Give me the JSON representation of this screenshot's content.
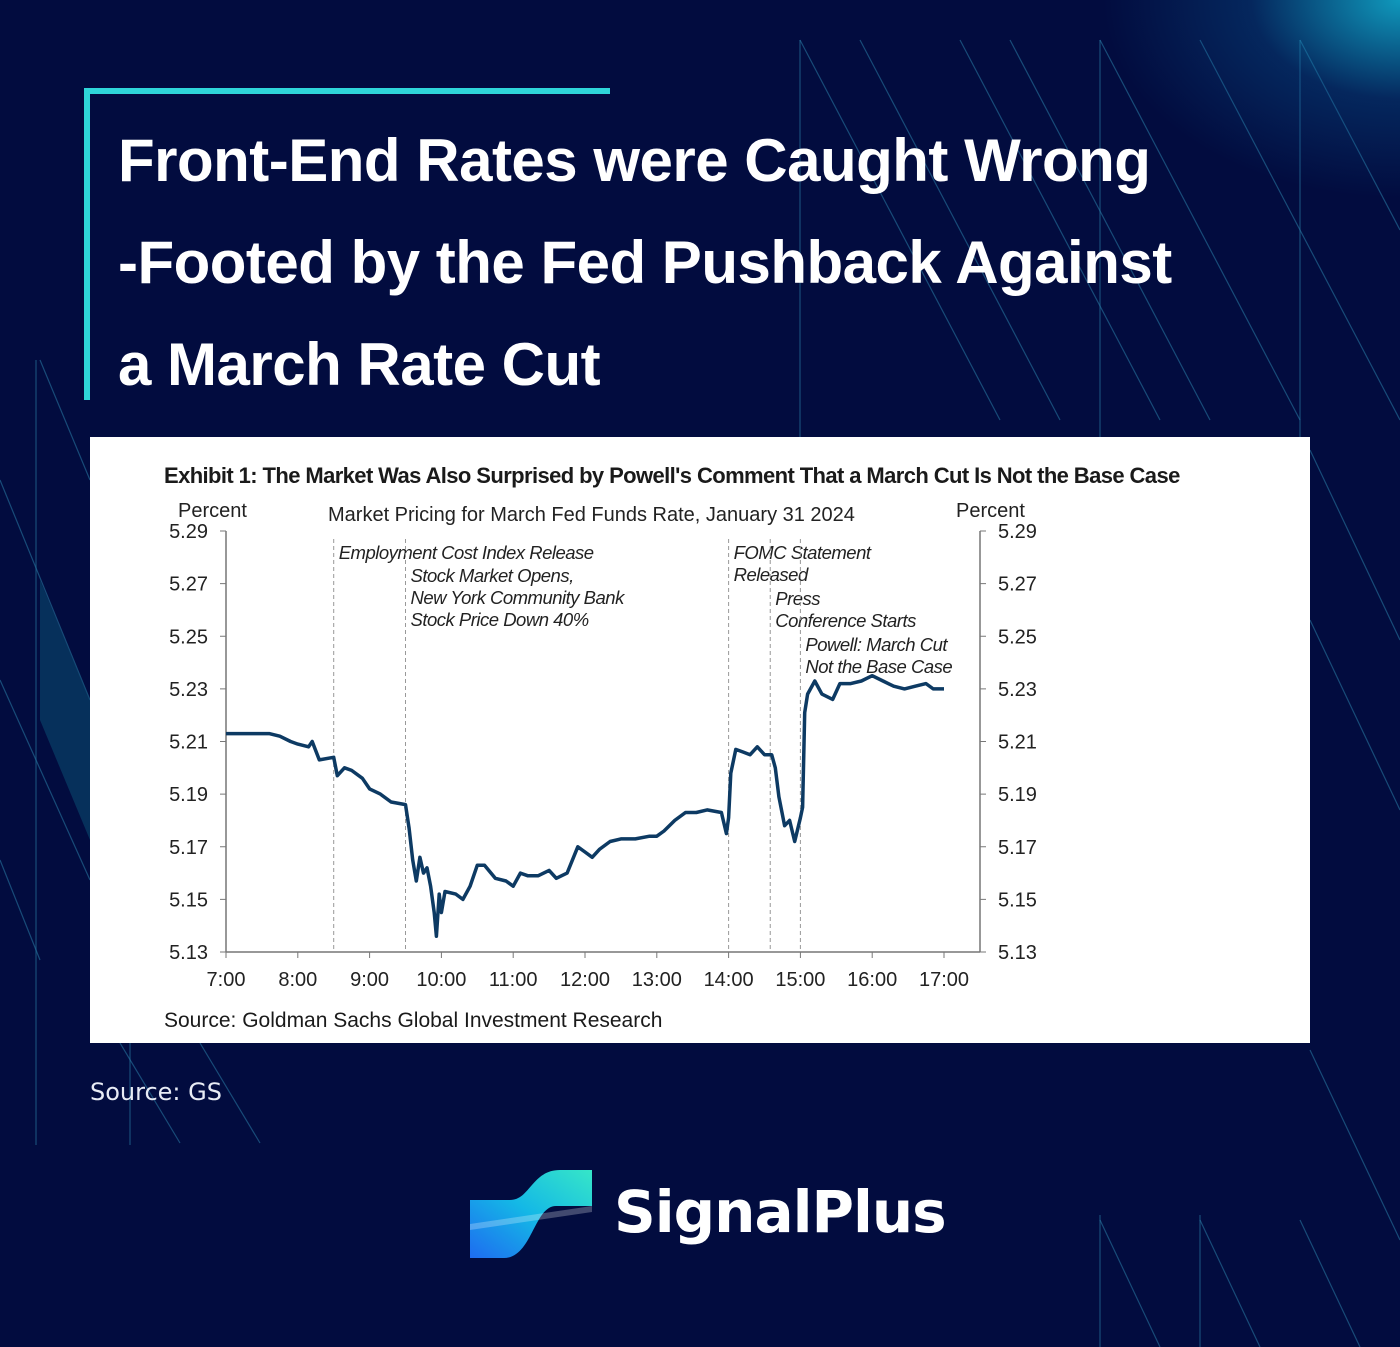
{
  "headline": "Front-End Rates were Caught Wrong -Footed by the Fed Pushback Against a March Rate Cut",
  "headline_lines": [
    "Front-End Rates were Caught Wrong",
    "-Footed by the Fed Pushback Against",
    "a March Rate Cut"
  ],
  "exhibit_title": "Exhibit 1: The Market Was Also Surprised by Powell's Comment That a March Cut Is Not the Base Case",
  "chart_source": "Source: Goldman Sachs Global Investment Research",
  "page_source": "Source: GS",
  "brand": {
    "name": "SignalPlus",
    "accent": "#2fd6d9"
  },
  "chart_data": {
    "type": "line",
    "title": "Market Pricing for March Fed Funds Rate, January  31 2024",
    "ylabel_left": "Percent",
    "ylabel_right": "Percent",
    "xlabel": "",
    "xlim": [
      7,
      17.5
    ],
    "ylim": [
      5.13,
      5.29
    ],
    "yticks": [
      "5.29",
      "5.27",
      "5.25",
      "5.23",
      "5.21",
      "5.19",
      "5.17",
      "5.15",
      "5.13"
    ],
    "xticks": [
      {
        "v": 7,
        "label": "7:00"
      },
      {
        "v": 8,
        "label": "8:00"
      },
      {
        "v": 9,
        "label": "9:00"
      },
      {
        "v": 10,
        "label": "10:00"
      },
      {
        "v": 11,
        "label": "11:00"
      },
      {
        "v": 12,
        "label": "12:00"
      },
      {
        "v": 13,
        "label": "13:00"
      },
      {
        "v": 14,
        "label": "14:00"
      },
      {
        "v": 15,
        "label": "15:00"
      },
      {
        "v": 16,
        "label": "16:00"
      },
      {
        "v": 17,
        "label": "17:00"
      }
    ],
    "line_color": "#0d3a63",
    "series": [
      {
        "name": "March Fed Funds Rate",
        "x": [
          7.0,
          7.3,
          7.6,
          7.75,
          7.9,
          8.0,
          8.15,
          8.2,
          8.3,
          8.5,
          8.55,
          8.65,
          8.75,
          8.9,
          9.0,
          9.15,
          9.3,
          9.5,
          9.55,
          9.6,
          9.65,
          9.7,
          9.75,
          9.8,
          9.85,
          9.9,
          9.93,
          9.97,
          10.0,
          10.05,
          10.2,
          10.3,
          10.4,
          10.5,
          10.6,
          10.75,
          10.9,
          11.0,
          11.1,
          11.2,
          11.35,
          11.5,
          11.6,
          11.75,
          11.9,
          12.0,
          12.1,
          12.2,
          12.35,
          12.5,
          12.7,
          12.9,
          13.0,
          13.1,
          13.25,
          13.4,
          13.55,
          13.7,
          13.9,
          13.97,
          14.0,
          14.03,
          14.1,
          14.2,
          14.3,
          14.4,
          14.5,
          14.6,
          14.65,
          14.7,
          14.78,
          14.85,
          14.92,
          15.0,
          15.03,
          15.06,
          15.1,
          15.2,
          15.3,
          15.45,
          15.55,
          15.7,
          15.85,
          16.0,
          16.15,
          16.3,
          16.45,
          16.6,
          16.75,
          16.85,
          17.0
        ],
        "y": [
          5.213,
          5.213,
          5.213,
          5.212,
          5.21,
          5.209,
          5.208,
          5.21,
          5.203,
          5.204,
          5.197,
          5.2,
          5.199,
          5.196,
          5.192,
          5.19,
          5.187,
          5.186,
          5.177,
          5.165,
          5.157,
          5.166,
          5.16,
          5.162,
          5.155,
          5.145,
          5.136,
          5.152,
          5.145,
          5.153,
          5.152,
          5.15,
          5.155,
          5.163,
          5.163,
          5.158,
          5.157,
          5.155,
          5.16,
          5.159,
          5.159,
          5.161,
          5.158,
          5.16,
          5.17,
          5.168,
          5.166,
          5.169,
          5.172,
          5.173,
          5.173,
          5.174,
          5.174,
          5.176,
          5.18,
          5.183,
          5.183,
          5.184,
          5.183,
          5.175,
          5.181,
          5.198,
          5.207,
          5.206,
          5.205,
          5.208,
          5.205,
          5.205,
          5.2,
          5.189,
          5.178,
          5.18,
          5.172,
          5.181,
          5.185,
          5.221,
          5.228,
          5.233,
          5.228,
          5.226,
          5.232,
          5.232,
          5.233,
          5.235,
          5.233,
          5.231,
          5.23,
          5.231,
          5.232,
          5.23,
          5.23
        ]
      }
    ],
    "annotations": [
      {
        "x": 8.5,
        "lines": [
          "Employment Cost Index Release"
        ],
        "level": 0
      },
      {
        "x": 9.5,
        "lines": [
          "Stock Market Opens,",
          "New York Community Bank",
          "Stock Price Down 40%"
        ],
        "level": 1
      },
      {
        "x": 14.0,
        "lines": [
          "FOMC Statement",
          "Released"
        ],
        "level": 0
      },
      {
        "x": 14.58,
        "lines": [
          "Press",
          "Conference Starts"
        ],
        "level": 2
      },
      {
        "x": 15.0,
        "lines": [
          "Powell: March Cut",
          "Not the Base Case"
        ],
        "level": 4
      }
    ],
    "grid": false
  }
}
